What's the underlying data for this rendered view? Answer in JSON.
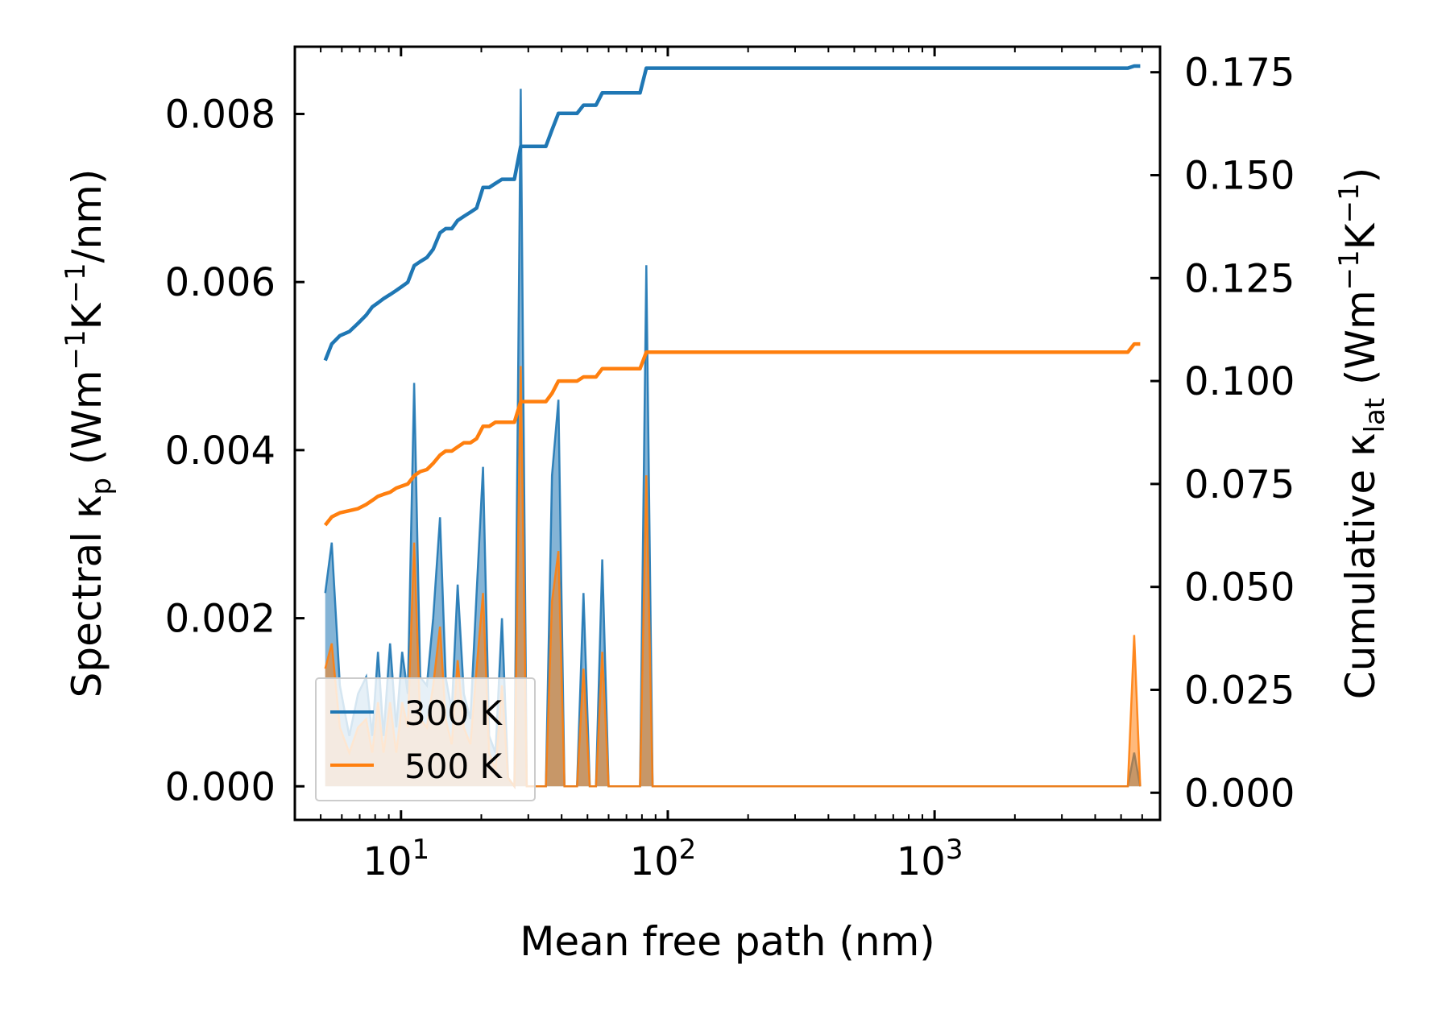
{
  "chart_data": {
    "type": "line",
    "xlabel": "Mean free path (nm)",
    "ylabel_left": {
      "main": "Spectral κ",
      "sub": "p",
      "unit_pre": "(Wm",
      "sup1": "−1",
      "mid": "K",
      "sup2": "−1",
      "unit_post": "/nm)"
    },
    "ylabel_right": {
      "main": "Cumulative κ",
      "sub": "lat",
      "unit_pre": "(Wm",
      "sup1": "−1",
      "mid": "K",
      "sup2": "−1",
      "unit_post": ")"
    },
    "x_scale": "log",
    "xlim": [
      4.0,
      7000
    ],
    "ylim_left": [
      -0.0004,
      0.0088
    ],
    "ylim_right": [
      -0.0066,
      0.1812
    ],
    "x_ticks": [
      {
        "value": 10,
        "base": "10",
        "exp": "1"
      },
      {
        "value": 100,
        "base": "10",
        "exp": "2"
      },
      {
        "value": 1000,
        "base": "10",
        "exp": "3"
      }
    ],
    "y_ticks_left": [
      {
        "value": 0.0,
        "label": "0.000"
      },
      {
        "value": 0.002,
        "label": "0.002"
      },
      {
        "value": 0.004,
        "label": "0.004"
      },
      {
        "value": 0.006,
        "label": "0.006"
      },
      {
        "value": 0.008,
        "label": "0.008"
      }
    ],
    "y_ticks_right": [
      {
        "value": 0.0,
        "label": "0.000"
      },
      {
        "value": 0.025,
        "label": "0.025"
      },
      {
        "value": 0.05,
        "label": "0.050"
      },
      {
        "value": 0.075,
        "label": "0.075"
      },
      {
        "value": 0.1,
        "label": "0.100"
      },
      {
        "value": 0.125,
        "label": "0.125"
      },
      {
        "value": 0.15,
        "label": "0.150"
      },
      {
        "value": 0.175,
        "label": "0.175"
      }
    ],
    "legend_position": "lower-left",
    "series": [
      {
        "name": "300 K",
        "color": "#1f77b4",
        "spectral": [
          [
            5.2,
            0.0023
          ],
          [
            5.5,
            0.0029
          ],
          [
            5.9,
            0.0012
          ],
          [
            6.4,
            0.0006
          ],
          [
            6.9,
            0.0011
          ],
          [
            7.4,
            0.0013
          ],
          [
            7.8,
            0.0006
          ],
          [
            8.2,
            0.0016
          ],
          [
            8.6,
            0.0006
          ],
          [
            9.1,
            0.0017
          ],
          [
            9.6,
            0.0007
          ],
          [
            10.1,
            0.0016
          ],
          [
            10.6,
            0.0011
          ],
          [
            11.2,
            0.0048
          ],
          [
            11.8,
            0.0013
          ],
          [
            12.5,
            0.0012
          ],
          [
            13.2,
            0.002
          ],
          [
            14.0,
            0.0032
          ],
          [
            14.7,
            0.0013
          ],
          [
            15.5,
            0.0009
          ],
          [
            16.3,
            0.0024
          ],
          [
            17.2,
            0.0011
          ],
          [
            18.2,
            0.0008
          ],
          [
            19.2,
            0.0023
          ],
          [
            20.3,
            0.0038
          ],
          [
            21.4,
            0.0006
          ],
          [
            22.6,
            0.0004
          ],
          [
            23.9,
            0.002
          ],
          [
            25.2,
            0.0001
          ],
          [
            26.6,
            0.0
          ],
          [
            28.1,
            0.0083
          ],
          [
            29.6,
            0.0
          ],
          [
            31.3,
            0.0
          ],
          [
            33.0,
            0.0
          ],
          [
            34.9,
            0.0
          ],
          [
            36.8,
            0.0037
          ],
          [
            38.9,
            0.0046
          ],
          [
            41.0,
            0.0
          ],
          [
            43.3,
            0.0
          ],
          [
            45.7,
            0.0
          ],
          [
            48.3,
            0.0023
          ],
          [
            51.0,
            0.0
          ],
          [
            53.8,
            0.0
          ],
          [
            56.8,
            0.0027
          ],
          [
            60.0,
            0.0
          ],
          [
            63.3,
            0.0
          ],
          [
            66.9,
            0.0
          ],
          [
            70.6,
            0.0
          ],
          [
            74.5,
            0.0
          ],
          [
            78.7,
            0.0
          ],
          [
            83.1,
            0.0062
          ],
          [
            87.7,
            0.0
          ],
          [
            100,
            0.0
          ],
          [
            200,
            0.0
          ],
          [
            500,
            0.0
          ],
          [
            1000,
            0.0
          ],
          [
            2000,
            0.0
          ],
          [
            4000,
            0.0
          ],
          [
            5300,
            0.0
          ],
          [
            5600,
            0.0004
          ],
          [
            5900,
            0.0
          ]
        ],
        "cumulative": [
          [
            5.2,
            0.105
          ],
          [
            5.5,
            0.109
          ],
          [
            5.9,
            0.111
          ],
          [
            6.4,
            0.112
          ],
          [
            6.9,
            0.114
          ],
          [
            7.4,
            0.116
          ],
          [
            7.8,
            0.118
          ],
          [
            8.2,
            0.119
          ],
          [
            8.6,
            0.12
          ],
          [
            9.1,
            0.121
          ],
          [
            9.6,
            0.122
          ],
          [
            10.1,
            0.123
          ],
          [
            10.6,
            0.124
          ],
          [
            11.2,
            0.128
          ],
          [
            11.8,
            0.129
          ],
          [
            12.5,
            0.13
          ],
          [
            13.2,
            0.132
          ],
          [
            14.0,
            0.136
          ],
          [
            14.7,
            0.137
          ],
          [
            15.5,
            0.137
          ],
          [
            16.3,
            0.139
          ],
          [
            17.2,
            0.14
          ],
          [
            18.2,
            0.141
          ],
          [
            19.2,
            0.142
          ],
          [
            20.3,
            0.147
          ],
          [
            21.4,
            0.147
          ],
          [
            22.6,
            0.148
          ],
          [
            23.9,
            0.149
          ],
          [
            25.2,
            0.149
          ],
          [
            26.6,
            0.149
          ],
          [
            28.1,
            0.157
          ],
          [
            29.6,
            0.157
          ],
          [
            31.3,
            0.157
          ],
          [
            33.0,
            0.157
          ],
          [
            34.9,
            0.157
          ],
          [
            36.8,
            0.161
          ],
          [
            38.9,
            0.165
          ],
          [
            41.0,
            0.165
          ],
          [
            43.3,
            0.165
          ],
          [
            45.7,
            0.165
          ],
          [
            48.3,
            0.167
          ],
          [
            51.0,
            0.167
          ],
          [
            53.8,
            0.167
          ],
          [
            56.8,
            0.17
          ],
          [
            60.0,
            0.17
          ],
          [
            63.3,
            0.17
          ],
          [
            66.9,
            0.17
          ],
          [
            70.6,
            0.17
          ],
          [
            74.5,
            0.17
          ],
          [
            78.7,
            0.17
          ],
          [
            83.1,
            0.176
          ],
          [
            87.7,
            0.176
          ],
          [
            100,
            0.176
          ],
          [
            200,
            0.176
          ],
          [
            500,
            0.176
          ],
          [
            1000,
            0.176
          ],
          [
            2000,
            0.176
          ],
          [
            4000,
            0.176
          ],
          [
            5300,
            0.176
          ],
          [
            5600,
            0.1765
          ],
          [
            5900,
            0.1765
          ]
        ]
      },
      {
        "name": "500 K",
        "color": "#ff7f0e",
        "spectral": [
          [
            5.2,
            0.0014
          ],
          [
            5.5,
            0.0017
          ],
          [
            5.9,
            0.0007
          ],
          [
            6.4,
            0.0004
          ],
          [
            6.9,
            0.0007
          ],
          [
            7.4,
            0.0008
          ],
          [
            7.8,
            0.0004
          ],
          [
            8.2,
            0.001
          ],
          [
            8.6,
            0.0004
          ],
          [
            9.1,
            0.001
          ],
          [
            9.6,
            0.0004
          ],
          [
            10.1,
            0.001
          ],
          [
            10.6,
            0.0007
          ],
          [
            11.2,
            0.0029
          ],
          [
            11.8,
            0.0008
          ],
          [
            12.5,
            0.0007
          ],
          [
            13.2,
            0.0012
          ],
          [
            14.0,
            0.0019
          ],
          [
            14.7,
            0.0008
          ],
          [
            15.5,
            0.0005
          ],
          [
            16.3,
            0.0015
          ],
          [
            17.2,
            0.0007
          ],
          [
            18.2,
            0.0005
          ],
          [
            19.2,
            0.0014
          ],
          [
            20.3,
            0.0023
          ],
          [
            21.4,
            0.0004
          ],
          [
            22.6,
            0.0002
          ],
          [
            23.9,
            0.0012
          ],
          [
            25.2,
            0.0001
          ],
          [
            26.6,
            0.0
          ],
          [
            28.1,
            0.005
          ],
          [
            29.6,
            0.0
          ],
          [
            31.3,
            0.0
          ],
          [
            33.0,
            0.0
          ],
          [
            34.9,
            0.0
          ],
          [
            36.8,
            0.0022
          ],
          [
            38.9,
            0.0028
          ],
          [
            41.0,
            0.0
          ],
          [
            43.3,
            0.0
          ],
          [
            45.7,
            0.0
          ],
          [
            48.3,
            0.0014
          ],
          [
            51.0,
            0.0
          ],
          [
            53.8,
            0.0
          ],
          [
            56.8,
            0.0016
          ],
          [
            60.0,
            0.0
          ],
          [
            63.3,
            0.0
          ],
          [
            66.9,
            0.0
          ],
          [
            70.6,
            0.0
          ],
          [
            74.5,
            0.0
          ],
          [
            78.7,
            0.0
          ],
          [
            83.1,
            0.0037
          ],
          [
            87.7,
            0.0
          ],
          [
            100,
            0.0
          ],
          [
            200,
            0.0
          ],
          [
            500,
            0.0
          ],
          [
            1000,
            0.0
          ],
          [
            2000,
            0.0
          ],
          [
            4000,
            0.0
          ],
          [
            5300,
            0.0
          ],
          [
            5600,
            0.0018
          ],
          [
            5900,
            0.0
          ]
        ],
        "cumulative": [
          [
            5.2,
            0.065
          ],
          [
            5.5,
            0.067
          ],
          [
            5.9,
            0.068
          ],
          [
            6.4,
            0.0685
          ],
          [
            6.9,
            0.069
          ],
          [
            7.4,
            0.07
          ],
          [
            7.8,
            0.071
          ],
          [
            8.2,
            0.072
          ],
          [
            8.6,
            0.0725
          ],
          [
            9.1,
            0.073
          ],
          [
            9.6,
            0.074
          ],
          [
            10.1,
            0.0745
          ],
          [
            10.6,
            0.075
          ],
          [
            11.2,
            0.077
          ],
          [
            11.8,
            0.078
          ],
          [
            12.5,
            0.0785
          ],
          [
            13.2,
            0.08
          ],
          [
            14.0,
            0.082
          ],
          [
            14.7,
            0.083
          ],
          [
            15.5,
            0.083
          ],
          [
            16.3,
            0.084
          ],
          [
            17.2,
            0.085
          ],
          [
            18.2,
            0.085
          ],
          [
            19.2,
            0.086
          ],
          [
            20.3,
            0.089
          ],
          [
            21.4,
            0.089
          ],
          [
            22.6,
            0.09
          ],
          [
            23.9,
            0.09
          ],
          [
            25.2,
            0.09
          ],
          [
            26.6,
            0.09
          ],
          [
            28.1,
            0.095
          ],
          [
            29.6,
            0.095
          ],
          [
            31.3,
            0.095
          ],
          [
            33.0,
            0.095
          ],
          [
            34.9,
            0.095
          ],
          [
            36.8,
            0.097
          ],
          [
            38.9,
            0.1
          ],
          [
            41.0,
            0.1
          ],
          [
            43.3,
            0.1
          ],
          [
            45.7,
            0.1
          ],
          [
            48.3,
            0.101
          ],
          [
            51.0,
            0.101
          ],
          [
            53.8,
            0.101
          ],
          [
            56.8,
            0.103
          ],
          [
            60.0,
            0.103
          ],
          [
            63.3,
            0.103
          ],
          [
            66.9,
            0.103
          ],
          [
            70.6,
            0.103
          ],
          [
            74.5,
            0.103
          ],
          [
            78.7,
            0.103
          ],
          [
            83.1,
            0.107
          ],
          [
            87.7,
            0.107
          ],
          [
            100,
            0.107
          ],
          [
            200,
            0.107
          ],
          [
            500,
            0.107
          ],
          [
            1000,
            0.107
          ],
          [
            2000,
            0.107
          ],
          [
            4000,
            0.107
          ],
          [
            5300,
            0.107
          ],
          [
            5600,
            0.109
          ],
          [
            5900,
            0.109
          ]
        ]
      }
    ]
  }
}
